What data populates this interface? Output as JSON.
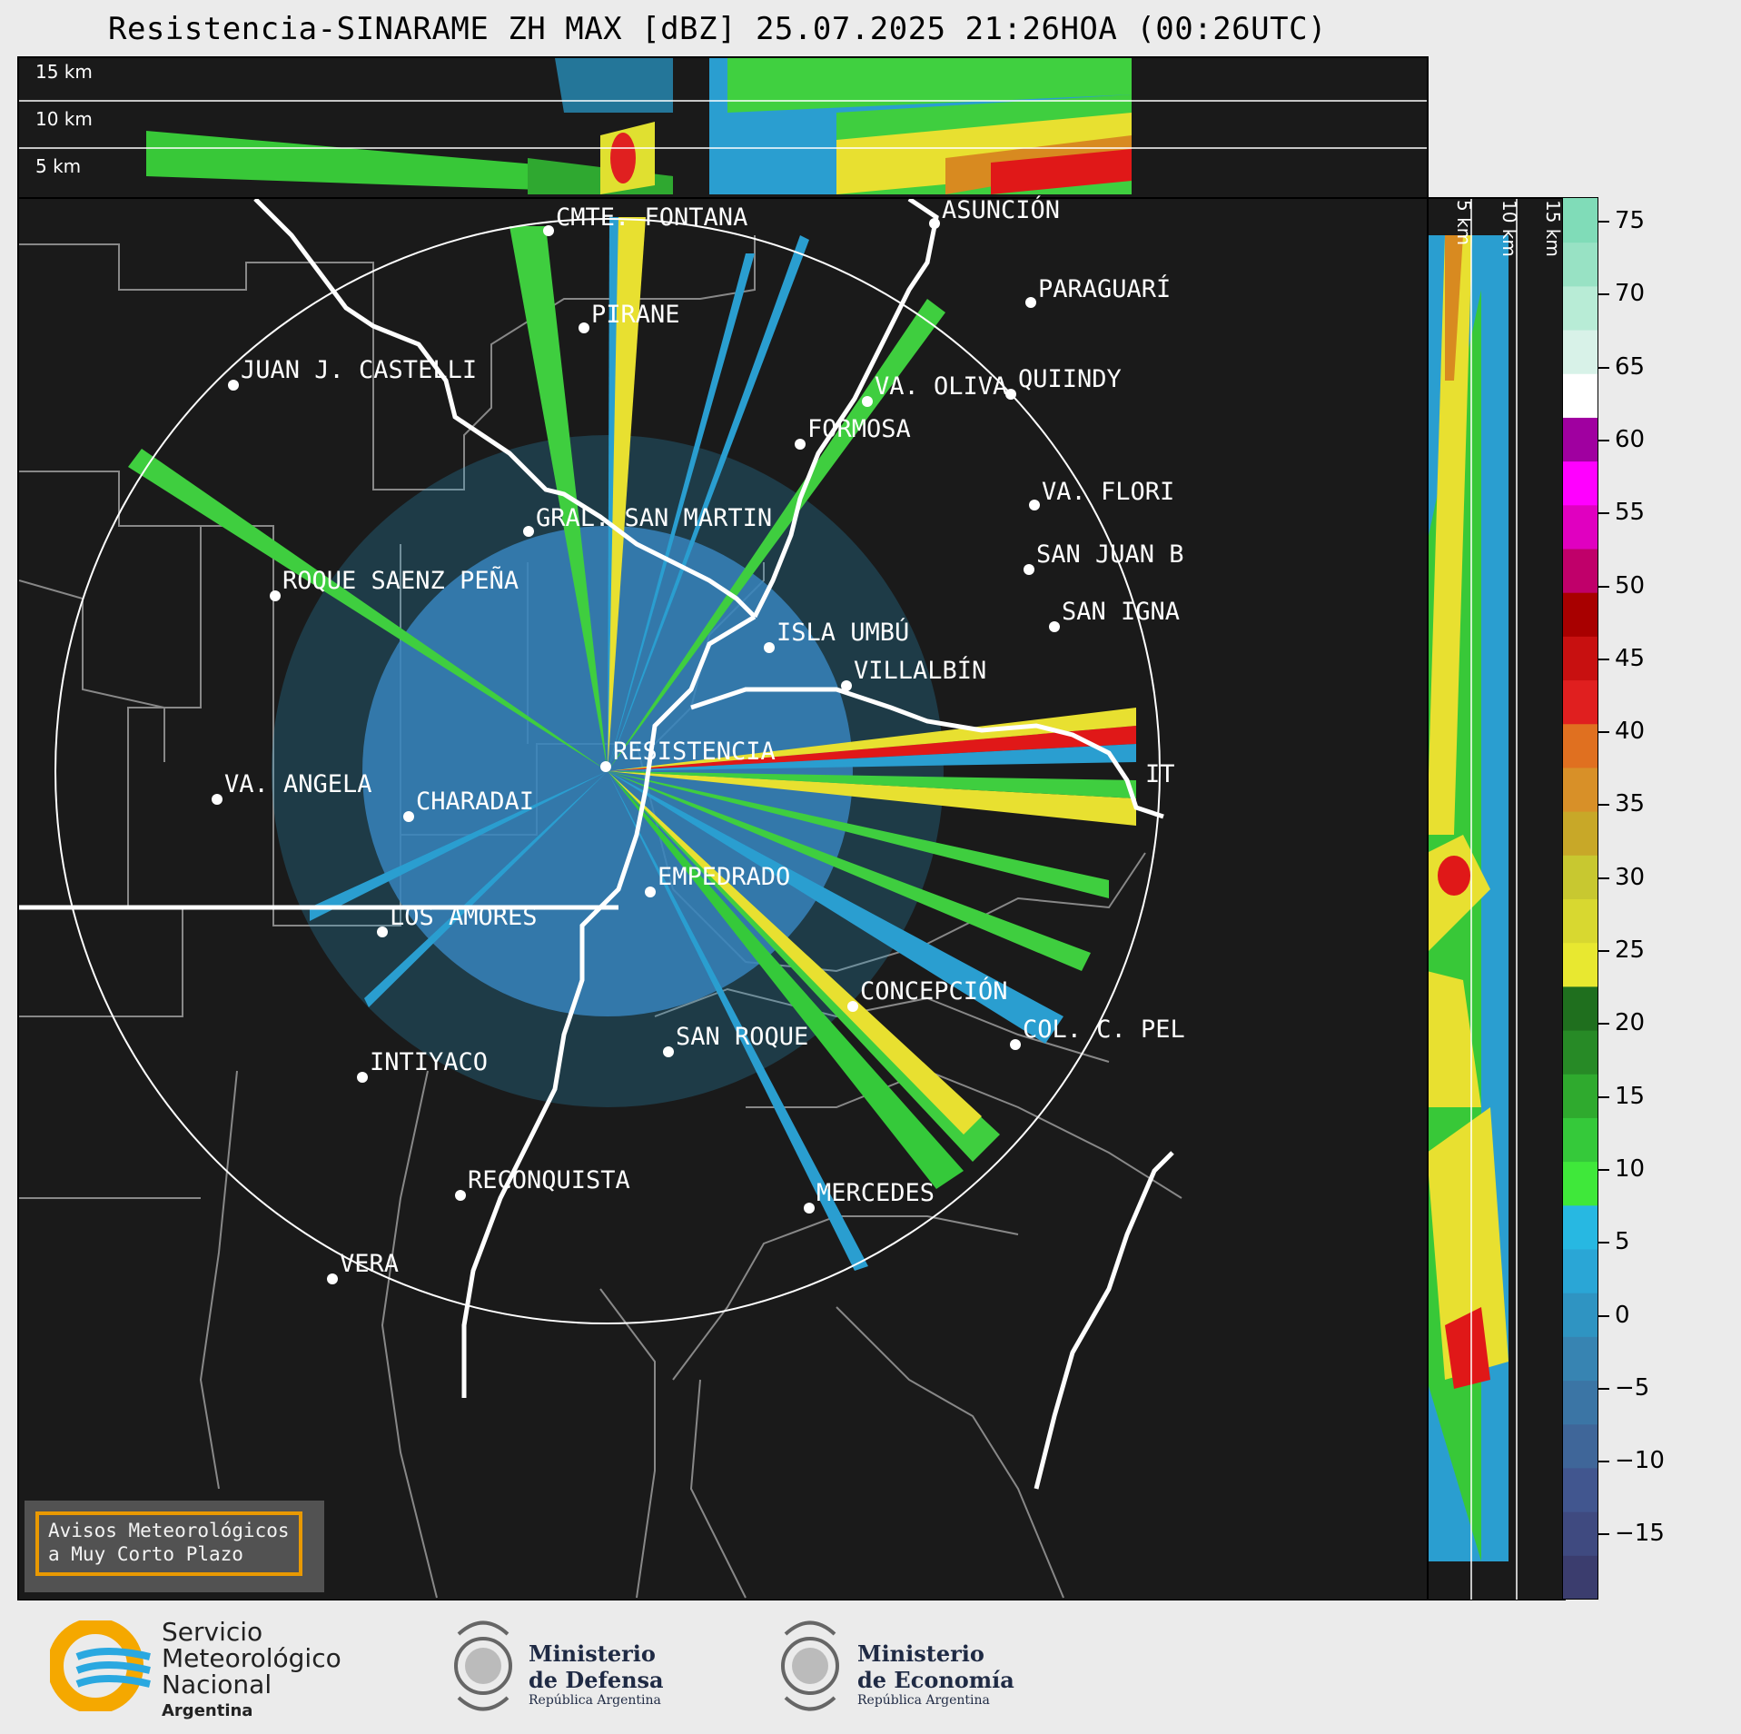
{
  "title": "Resistencia-SINARAME ZH MAX [dBZ] 25.07.2025 21:26HOA (00:26UTC)",
  "rhi_top": {
    "labels": [
      "15 km",
      "10 km",
      "5 km"
    ]
  },
  "rhi_side": {
    "labels": [
      "5 km",
      "10 km",
      "15 km"
    ]
  },
  "cities": [
    {
      "name": "CMTE. FONTANA"
    },
    {
      "name": "ASUNCIÓN"
    },
    {
      "name": "PIRANE"
    },
    {
      "name": "PARAGUARÍ"
    },
    {
      "name": "JUAN J. CASTELLI"
    },
    {
      "name": "VA. OLIVA"
    },
    {
      "name": "QUIINDY"
    },
    {
      "name": "FORMOSA"
    },
    {
      "name": "VA. FLORI"
    },
    {
      "name": "GRAL. SAN MARTIN"
    },
    {
      "name": "SAN JUAN B"
    },
    {
      "name": "ROQUE SAENZ PEÑA"
    },
    {
      "name": "SAN IGNA"
    },
    {
      "name": "ISLA UMBÚ"
    },
    {
      "name": "VILLALBÍN"
    },
    {
      "name": "RESISTENCIA"
    },
    {
      "name": "VA. ANGELA"
    },
    {
      "name": "CHARADAI"
    },
    {
      "name": "IT"
    },
    {
      "name": "EMPEDRADO"
    },
    {
      "name": "LOS AMORES"
    },
    {
      "name": "CONCEPCIÓN"
    },
    {
      "name": "SAN ROQUE"
    },
    {
      "name": "COL. C. PEL"
    },
    {
      "name": "INTIYACO"
    },
    {
      "name": "RECONQUISTA"
    },
    {
      "name": "MERCEDES"
    },
    {
      "name": "VERA"
    }
  ],
  "colorbar": {
    "ticks": [
      "75",
      "70",
      "65",
      "60",
      "55",
      "50",
      "45",
      "40",
      "35",
      "30",
      "25",
      "20",
      "15",
      "10",
      "5",
      "0",
      "−5",
      "−10",
      "−15"
    ],
    "colors": [
      "#3b3d6e",
      "#3f4a80",
      "#41568f",
      "#3f6699",
      "#3b75a5",
      "#3784b2",
      "#2f94c2",
      "#2aa6d6",
      "#27b8e2",
      "#3fe83a",
      "#35c93a",
      "#2faa2e",
      "#278a26",
      "#1f6f1e",
      "#e8e830",
      "#d8d830",
      "#c8c830",
      "#c8a828",
      "#d89028",
      "#e07020",
      "#e01f1f",
      "#c81010",
      "#a80000",
      "#c0006a",
      "#e000c0",
      "#ff00ff",
      "#a000a0",
      "#ffffff",
      "#d8f2e8",
      "#b8ecd6",
      "#98e2c4",
      "#80dcb8"
    ]
  },
  "avisos": {
    "line1": "Avisos Meteorológicos",
    "line2": "a Muy Corto Plazo"
  },
  "footer": {
    "smn": {
      "line1": "Servicio",
      "line2": "Meteorológico",
      "line3": "Nacional",
      "line4": "Argentina"
    },
    "defensa": {
      "line1": "Ministerio",
      "line2": "de Defensa",
      "line3": "República Argentina"
    },
    "economia": {
      "line1": "Ministerio",
      "line2": "de Economía",
      "line3": "República Argentina"
    }
  }
}
